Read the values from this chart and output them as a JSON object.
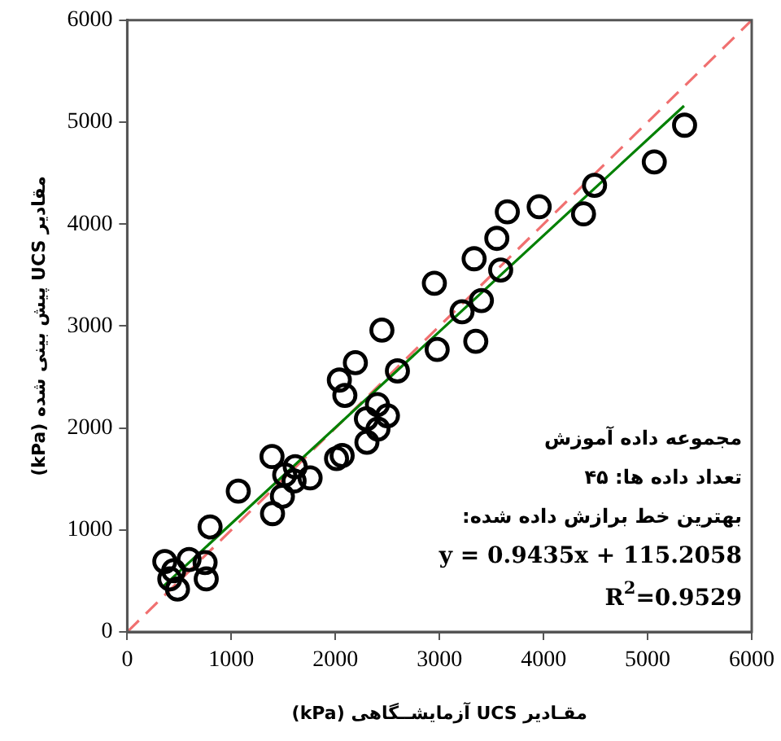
{
  "chart_data": {
    "type": "scatter",
    "xlabel": "مقـادیر UCS آزمایشــگاهی (kPa)",
    "ylabel": "مقادیر UCS پیش بینی شده (kPa)",
    "xlim": [
      0,
      6000
    ],
    "ylim": [
      0,
      6000
    ],
    "xticks": [
      0,
      1000,
      2000,
      3000,
      4000,
      5000,
      6000
    ],
    "yticks": [
      0,
      1000,
      2000,
      3000,
      4000,
      5000,
      6000
    ],
    "legend": false,
    "marker": "circle",
    "annotations": [
      "مجموعه داده آموزش",
      "تعداد داده ها: ۴۵",
      "بهترین خط برازش داده شده:",
      "y = 0.9435x + 115.2058",
      "R$^{2}$=0.9529"
    ],
    "series": [
      {
        "type": "line",
        "color": "#f07070",
        "line_style": "dashed",
        "marker": "none",
        "x": [
          0,
          6000
        ],
        "values": [
          0,
          6000
        ]
      },
      {
        "type": "line",
        "color": "#008000",
        "line_style": "solid",
        "marker": "none",
        "x": [
          350,
          5350
        ],
        "values": [
          450,
          5160
        ]
      },
      {
        "color": "#000000",
        "x": [
          361,
          446,
          409,
          483,
          594,
          748,
          759,
          796,
          1067,
          1391,
          1396,
          1491,
          1513,
          1614,
          1603,
          1757,
          2011,
          2065,
          2038,
          2091,
          2192,
          2303,
          2298,
          2404,
          2409,
          2500,
          2447,
          2596,
          2978,
          3349,
          3217,
          3403,
          2951,
          3333,
          3588,
          3551,
          3652,
          3958,
          4384,
          4490,
          5064,
          5355
        ],
        "values": [
          690,
          600,
          520,
          420,
          710,
          680,
          520,
          1030,
          1380,
          1720,
          1160,
          1330,
          1540,
          1620,
          1480,
          1510,
          1700,
          1730,
          2470,
          2320,
          2640,
          1860,
          2090,
          2230,
          1990,
          2120,
          2960,
          2560,
          2770,
          2850,
          3140,
          3250,
          3420,
          3660,
          3550,
          3860,
          4120,
          4170,
          4100,
          4380,
          4610,
          4970
        ]
      }
    ]
  }
}
